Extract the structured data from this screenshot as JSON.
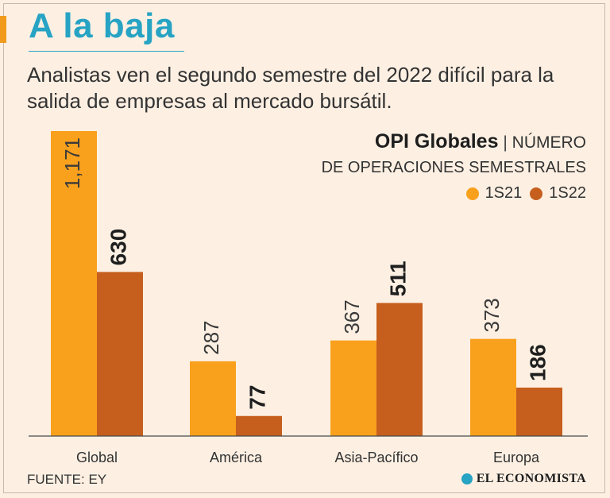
{
  "headline": "A la baja",
  "subtitle": "Analistas ven el segundo semestre del 2022 difícil para la salida de empresas al mercado bursátil.",
  "legend": {
    "title_bold": "OPI Globales",
    "separator": "|",
    "title_rest": "NÚMERO",
    "subtitle": "DE OPERACIONES SEMESTRALES",
    "series_1": "1S21",
    "series_2": "1S22"
  },
  "colors": {
    "series_1": "#f9a01d",
    "series_2": "#c65f1e",
    "accent": "#27a3c4"
  },
  "chart_data": {
    "type": "bar",
    "title": "OPI Globales | NÚMERO DE OPERACIONES SEMESTRALES",
    "categories": [
      "Global",
      "América",
      "Asia-Pacífico",
      "Europa"
    ],
    "series": [
      {
        "name": "1S21",
        "values": [
          1171,
          287,
          367,
          373
        ],
        "labels": [
          "1,171",
          "287",
          "367",
          "373"
        ]
      },
      {
        "name": "1S22",
        "values": [
          630,
          77,
          511,
          186
        ],
        "labels": [
          "630",
          "77",
          "511",
          "186"
        ]
      }
    ],
    "ylim": [
      0,
      1171
    ],
    "xlabel": "",
    "ylabel": "",
    "grid": false,
    "legend": "top-right"
  },
  "source": "FUENTE: EY",
  "brand": "EL ECONOMISTA"
}
